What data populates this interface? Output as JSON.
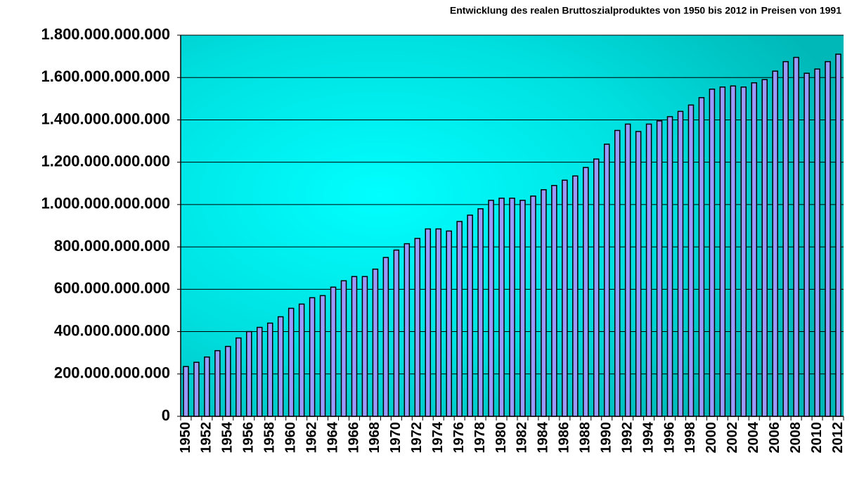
{
  "chart_data": {
    "type": "bar",
    "title": "Entwicklung des realen Bruttoszialproduktes von 1950 bis 2012 in Preisen von 1991",
    "categories": [
      "1950",
      null,
      "1952",
      null,
      "1954",
      null,
      "1956",
      null,
      "1958",
      null,
      "1960",
      null,
      "1962",
      null,
      "1964",
      null,
      "1966",
      null,
      "1968",
      null,
      "1970",
      null,
      "1972",
      null,
      "1974",
      null,
      "1976",
      null,
      "1978",
      null,
      "1980",
      null,
      "1982",
      null,
      "1984",
      null,
      "1986",
      null,
      "1988",
      null,
      "1990",
      null,
      "1992",
      null,
      "1994",
      null,
      "1996",
      null,
      "1998",
      null,
      "2000",
      null,
      "2002",
      null,
      "2004",
      null,
      "2006",
      null,
      "2008",
      null,
      "2010",
      null,
      "2012"
    ],
    "values": [
      235000000000,
      255000000000,
      280000000000,
      310000000000,
      330000000000,
      370000000000,
      400000000000,
      420000000000,
      440000000000,
      470000000000,
      510000000000,
      530000000000,
      560000000000,
      570000000000,
      610000000000,
      640000000000,
      660000000000,
      660000000000,
      695000000000,
      750000000000,
      785000000000,
      815000000000,
      840000000000,
      885000000000,
      885000000000,
      875000000000,
      920000000000,
      950000000000,
      980000000000,
      1020000000000,
      1030000000000,
      1030000000000,
      1020000000000,
      1040000000000,
      1070000000000,
      1090000000000,
      1115000000000,
      1135000000000,
      1175000000000,
      1215000000000,
      1285000000000,
      1350000000000,
      1380000000000,
      1345000000000,
      1380000000000,
      1395000000000,
      1415000000000,
      1440000000000,
      1470000000000,
      1505000000000,
      1545000000000,
      1555000000000,
      1560000000000,
      1555000000000,
      1575000000000,
      1590000000000,
      1630000000000,
      1675000000000,
      1695000000000,
      1620000000000,
      1640000000000,
      1675000000000,
      1710000000000
    ],
    "color": "#9999ff",
    "ylim": [
      0,
      1800000000000
    ],
    "yticks": [
      0,
      {
        "value": 200000000000,
        "label": "200.000.000.000"
      },
      {
        "value": 400000000000,
        "label": "400.000.000.000"
      },
      {
        "value": 600000000000,
        "label": "600.000.000.000"
      },
      {
        "value": 800000000000,
        "label": "800.000.000.000"
      },
      {
        "value": 1000000000000,
        "label": "1.000.000.000.000"
      },
      {
        "value": 1200000000000,
        "label": "1.200.000.000.000"
      },
      {
        "value": 1400000000000,
        "label": "1.400.000.000.000"
      },
      {
        "value": 1600000000000,
        "label": "1.600.000.000.000"
      },
      {
        "value": 1800000000000,
        "label": "1.800.000.000.000"
      }
    ],
    "grid": true
  }
}
